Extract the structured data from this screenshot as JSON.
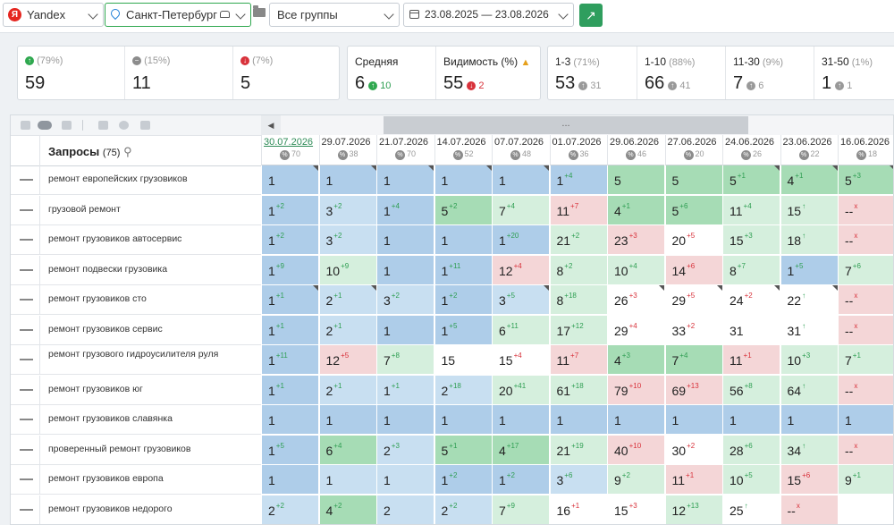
{
  "toolbar": {
    "engine": "Yandex",
    "engine_icon_text": "Я",
    "region": "Санкт-Петербург",
    "group": "Все группы",
    "date_range": "23.08.2025 — 23.08.2026"
  },
  "summary": {
    "dynamics": [
      {
        "pct": "(79%)",
        "value": "59",
        "icon": "↑",
        "color": "#2fa84f"
      },
      {
        "pct": "(15%)",
        "value": "11",
        "icon": "−",
        "color": "#8c8c8c"
      },
      {
        "pct": "(7%)",
        "value": "5",
        "icon": "↓",
        "color": "#d8323b"
      }
    ],
    "avg": {
      "label": "Средняя",
      "value": "6",
      "delta": "10",
      "delta_icon": "↑",
      "color": "#2fa84f"
    },
    "visibility": {
      "label": "Видимость (%)",
      "value": "55",
      "delta": "2",
      "delta_icon": "↓",
      "color": "#d8323b"
    },
    "ranges": [
      {
        "label": "1-3",
        "pct": "(71%)",
        "value": "53",
        "delta": "31"
      },
      {
        "label": "1-10",
        "pct": "(88%)",
        "value": "66",
        "delta": "41"
      },
      {
        "label": "11-30",
        "pct": "(9%)",
        "value": "7",
        "delta": "6"
      },
      {
        "label": "31-50",
        "pct": "(1%)",
        "value": "1",
        "delta": "1"
      }
    ]
  },
  "grid": {
    "queries_label": "Запросы",
    "queries_count": "(75)",
    "scroll_label": "...",
    "dates": [
      {
        "date": "30.07.2026",
        "pct": "70"
      },
      {
        "date": "29.07.2026",
        "pct": "38"
      },
      {
        "date": "21.07.2026",
        "pct": "70"
      },
      {
        "date": "14.07.2026",
        "pct": "52"
      },
      {
        "date": "07.07.2026",
        "pct": "48"
      },
      {
        "date": "01.07.2026",
        "pct": "36"
      },
      {
        "date": "29.06.2026",
        "pct": "46"
      },
      {
        "date": "27.06.2026",
        "pct": "20"
      },
      {
        "date": "24.06.2026",
        "pct": "26"
      },
      {
        "date": "23.06.2026",
        "pct": "22"
      },
      {
        "date": "16.06.2026",
        "pct": "18"
      }
    ],
    "rows": [
      {
        "query": "ремонт европейских грузовиков",
        "cells": [
          [
            "1",
            "",
            "blue",
            1
          ],
          [
            "1",
            "",
            "blue",
            1
          ],
          [
            "1",
            "",
            "blue",
            1
          ],
          [
            "1",
            "",
            "blue",
            1
          ],
          [
            "1",
            "",
            "blue",
            1
          ],
          [
            "1",
            "+4",
            "blue",
            0
          ],
          [
            "5",
            "",
            "green",
            0
          ],
          [
            "5",
            "",
            "green",
            0
          ],
          [
            "5",
            "+1",
            "green",
            1
          ],
          [
            "4",
            "+1",
            "green",
            1
          ],
          [
            "5",
            "+3",
            "green",
            1
          ]
        ]
      },
      {
        "query": "грузовой ремонт",
        "cells": [
          [
            "1",
            "+2",
            "blue",
            0
          ],
          [
            "3",
            "+2",
            "lblue",
            0
          ],
          [
            "1",
            "+4",
            "blue",
            0
          ],
          [
            "5",
            "+2",
            "green",
            0
          ],
          [
            "7",
            "+4",
            "lgreen",
            0
          ],
          [
            "11",
            "+7",
            "red",
            0
          ],
          [
            "4",
            "+1",
            "green",
            0
          ],
          [
            "5",
            "+6",
            "green",
            0
          ],
          [
            "11",
            "+4",
            "lgreen",
            0
          ],
          [
            "15",
            "↑",
            "lgreen",
            0
          ],
          [
            "--",
            "x",
            "red",
            0
          ]
        ]
      },
      {
        "query": "ремонт грузовиков автосервис",
        "cells": [
          [
            "1",
            "+2",
            "blue",
            0
          ],
          [
            "3",
            "+2",
            "lblue",
            0
          ],
          [
            "1",
            "",
            "blue",
            0
          ],
          [
            "1",
            "",
            "blue",
            0
          ],
          [
            "1",
            "+20",
            "blue",
            0
          ],
          [
            "21",
            "+2",
            "lgreen",
            0
          ],
          [
            "23",
            "+3",
            "red",
            0
          ],
          [
            "20",
            "+5",
            "white",
            0
          ],
          [
            "15",
            "+3",
            "lgreen",
            0
          ],
          [
            "18",
            "↑",
            "lgreen",
            0
          ],
          [
            "--",
            "x",
            "red",
            0
          ]
        ]
      },
      {
        "query": "ремонт подвески грузовика",
        "cells": [
          [
            "1",
            "+9",
            "blue",
            0
          ],
          [
            "10",
            "+9",
            "lgreen",
            0
          ],
          [
            "1",
            "",
            "blue",
            0
          ],
          [
            "1",
            "+11",
            "blue",
            0
          ],
          [
            "12",
            "+4",
            "red",
            0
          ],
          [
            "8",
            "+2",
            "lgreen",
            0
          ],
          [
            "10",
            "+4",
            "lgreen",
            0
          ],
          [
            "14",
            "+6",
            "red",
            0
          ],
          [
            "8",
            "+7",
            "lgreen",
            0
          ],
          [
            "1",
            "+5",
            "blue",
            0
          ],
          [
            "7",
            "+6",
            "lgreen",
            0
          ]
        ]
      },
      {
        "query": "ремонт грузовиков сто",
        "cells": [
          [
            "1",
            "+1",
            "blue",
            1
          ],
          [
            "2",
            "+1",
            "lblue",
            1
          ],
          [
            "3",
            "+2",
            "lblue",
            0
          ],
          [
            "1",
            "+2",
            "blue",
            0
          ],
          [
            "3",
            "+5",
            "lblue",
            1
          ],
          [
            "8",
            "+18",
            "lgreen",
            0
          ],
          [
            "26",
            "+3",
            "white",
            1
          ],
          [
            "29",
            "+5",
            "white",
            1
          ],
          [
            "24",
            "+2",
            "white",
            1
          ],
          [
            "22",
            "↑",
            "white",
            1
          ],
          [
            "--",
            "x",
            "red",
            0
          ]
        ]
      },
      {
        "query": "ремонт грузовиков сервис",
        "cells": [
          [
            "1",
            "+1",
            "blue",
            0
          ],
          [
            "2",
            "+1",
            "lblue",
            0
          ],
          [
            "1",
            "",
            "blue",
            0
          ],
          [
            "1",
            "+5",
            "blue",
            0
          ],
          [
            "6",
            "+11",
            "lgreen",
            0
          ],
          [
            "17",
            "+12",
            "lgreen",
            0
          ],
          [
            "29",
            "+4",
            "white",
            0
          ],
          [
            "33",
            "+2",
            "white",
            0
          ],
          [
            "31",
            "",
            "white",
            0
          ],
          [
            "31",
            "↑",
            "white",
            0
          ],
          [
            "--",
            "x",
            "red",
            0
          ]
        ]
      },
      {
        "query": "ремонт грузового гидроусилителя руля",
        "cells": [
          [
            "1",
            "+11",
            "blue",
            0
          ],
          [
            "12",
            "+5",
            "red",
            0
          ],
          [
            "7",
            "+8",
            "lgreen",
            0
          ],
          [
            "15",
            "",
            "white",
            0
          ],
          [
            "15",
            "+4",
            "white",
            0
          ],
          [
            "11",
            "+7",
            "red",
            0
          ],
          [
            "4",
            "+3",
            "green",
            0
          ],
          [
            "7",
            "+4",
            "green",
            0
          ],
          [
            "11",
            "+1",
            "red",
            0
          ],
          [
            "10",
            "+3",
            "lgreen",
            0
          ],
          [
            "7",
            "+1",
            "lgreen",
            0
          ]
        ]
      },
      {
        "query": "ремонт грузовиков юг",
        "cells": [
          [
            "1",
            "+1",
            "blue",
            0
          ],
          [
            "2",
            "+1",
            "lblue",
            0
          ],
          [
            "1",
            "+1",
            "lblue",
            0
          ],
          [
            "2",
            "+18",
            "lblue",
            0
          ],
          [
            "20",
            "+41",
            "lgreen",
            0
          ],
          [
            "61",
            "+18",
            "lgreen",
            0
          ],
          [
            "79",
            "+10",
            "red",
            0
          ],
          [
            "69",
            "+13",
            "red",
            0
          ],
          [
            "56",
            "+8",
            "lgreen",
            0
          ],
          [
            "64",
            "↑",
            "lgreen",
            0
          ],
          [
            "--",
            "x",
            "red",
            0
          ]
        ]
      },
      {
        "query": "ремонт грузовиков славянка",
        "cells": [
          [
            "1",
            "",
            "blue",
            0
          ],
          [
            "1",
            "",
            "blue",
            0
          ],
          [
            "1",
            "",
            "blue",
            0
          ],
          [
            "1",
            "",
            "blue",
            0
          ],
          [
            "1",
            "",
            "blue",
            0
          ],
          [
            "1",
            "",
            "blue",
            0
          ],
          [
            "1",
            "",
            "blue",
            0
          ],
          [
            "1",
            "",
            "blue",
            0
          ],
          [
            "1",
            "",
            "blue",
            0
          ],
          [
            "1",
            "",
            "blue",
            0
          ],
          [
            "1",
            "",
            "blue",
            0
          ]
        ]
      },
      {
        "query": "проверенный ремонт грузовиков",
        "cells": [
          [
            "1",
            "+5",
            "blue",
            0
          ],
          [
            "6",
            "+4",
            "green",
            0
          ],
          [
            "2",
            "+3",
            "lblue",
            0
          ],
          [
            "5",
            "+1",
            "green",
            0
          ],
          [
            "4",
            "+17",
            "green",
            0
          ],
          [
            "21",
            "+19",
            "lgreen",
            0
          ],
          [
            "40",
            "+10",
            "red",
            0
          ],
          [
            "30",
            "+2",
            "white",
            0
          ],
          [
            "28",
            "+6",
            "lgreen",
            0
          ],
          [
            "34",
            "↑",
            "lgreen",
            0
          ],
          [
            "--",
            "x",
            "red",
            0
          ]
        ]
      },
      {
        "query": "ремонт грузовиков европа",
        "cells": [
          [
            "1",
            "",
            "blue",
            0
          ],
          [
            "1",
            "",
            "lblue",
            0
          ],
          [
            "1",
            "",
            "lblue",
            0
          ],
          [
            "1",
            "+2",
            "blue",
            0
          ],
          [
            "1",
            "+2",
            "blue",
            0
          ],
          [
            "3",
            "+6",
            "lblue",
            0
          ],
          [
            "9",
            "+2",
            "lgreen",
            0
          ],
          [
            "11",
            "+1",
            "red",
            0
          ],
          [
            "10",
            "+5",
            "lgreen",
            0
          ],
          [
            "15",
            "+6",
            "red",
            0
          ],
          [
            "9",
            "+1",
            "lgreen",
            0
          ]
        ]
      },
      {
        "query": "ремонт грузовиков недорого",
        "cells": [
          [
            "2",
            "+2",
            "lblue",
            0
          ],
          [
            "4",
            "+2",
            "green",
            0
          ],
          [
            "2",
            "",
            "lblue",
            0
          ],
          [
            "2",
            "+2",
            "lblue",
            0
          ],
          [
            "7",
            "+9",
            "lgreen",
            0
          ],
          [
            "16",
            "+1",
            "white",
            0
          ],
          [
            "15",
            "+3",
            "white",
            0
          ],
          [
            "12",
            "+13",
            "lgreen",
            0
          ],
          [
            "25",
            "↑",
            "white",
            0
          ],
          [
            "--",
            "x",
            "red",
            0
          ],
          [
            "",
            "",
            "white",
            0
          ]
        ]
      }
    ],
    "colors": {
      "blue": "#aecde9",
      "lblue": "#c8dff1",
      "green": "#a6dcb5",
      "lgreen": "#d5efdd",
      "red": "#f4d6d7",
      "white": "#ffffff"
    }
  }
}
